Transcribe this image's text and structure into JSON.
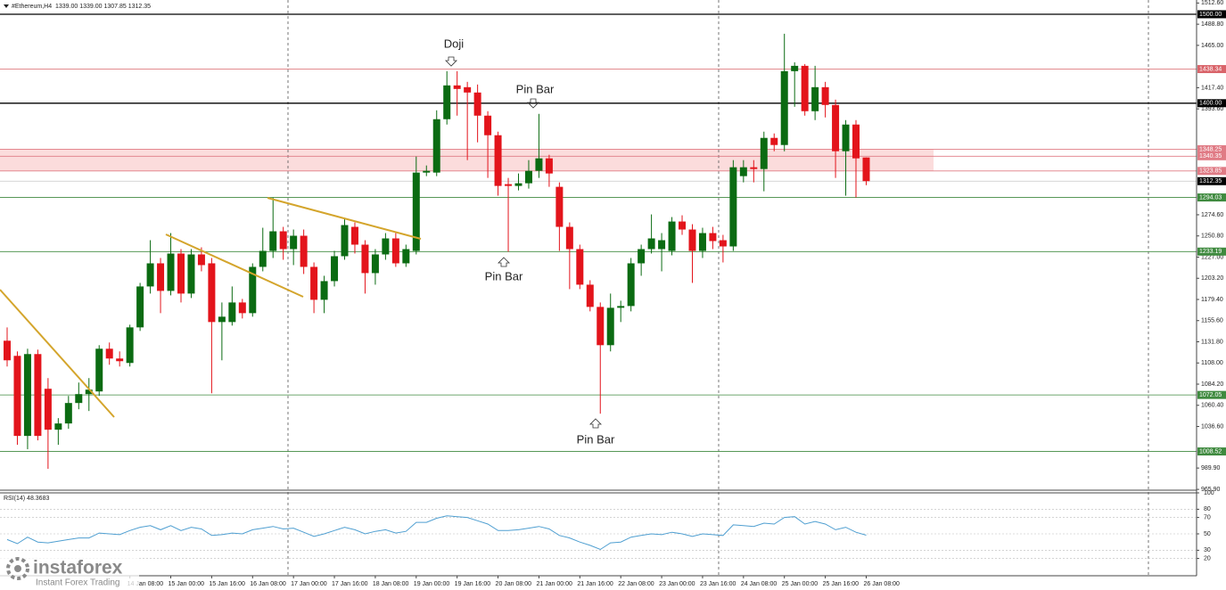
{
  "header": {
    "symbol": "#Ethereum,H4",
    "info": "1339.00 1339.00 1307.85 1312.35"
  },
  "chart_data": [
    {
      "type": "candlestick",
      "categories": [
        null,
        null,
        null,
        null,
        null,
        null,
        null,
        null,
        null,
        null,
        null,
        null,
        "14 Jan 08:00",
        null,
        null,
        null,
        "15 Jan 00:00",
        null,
        null,
        null,
        "15 Jan 16:00",
        null,
        null,
        null,
        "16 Jan 08:00",
        null,
        null,
        null,
        "17 Jan 00:00",
        null,
        null,
        null,
        "17 Jan 16:00",
        null,
        null,
        null,
        "18 Jan 08:00",
        null,
        null,
        null,
        "19 Jan 00:00",
        null,
        null,
        null,
        "19 Jan 16:00",
        null,
        null,
        null,
        "20 Jan 08:00",
        null,
        null,
        null,
        "21 Jan 00:00",
        null,
        null,
        null,
        "21 Jan 16:00",
        null,
        null,
        null,
        "22 Jan 08:00",
        null,
        null,
        null,
        "23 Jan 00:00",
        null,
        null,
        null,
        "23 Jan 16:00",
        null,
        null,
        null,
        "24 Jan 08:00",
        null,
        null,
        null,
        "25 Jan 00:00",
        null,
        null,
        null,
        "25 Jan 16:00",
        null,
        null,
        null,
        "26 Jan 08:00"
      ],
      "open": [
        1133,
        1116,
        1026,
        1118,
        1079,
        1033,
        1040,
        1063,
        1073,
        1076,
        1124,
        1113,
        1108,
        1148,
        1194,
        1220,
        1189,
        1231,
        1186,
        1230,
        1220,
        1154,
        1154,
        1176,
        1164,
        1216,
        1234,
        1256,
        1236,
        1251,
        1216,
        1179,
        1200,
        1228,
        1261,
        1241,
        1209,
        1230,
        1248,
        1220,
        1234,
        1322,
        1322,
        1382,
        1420,
        1418,
        1412,
        1386,
        1364,
        1309,
        1307,
        1310,
        1324,
        1338,
        1306,
        1261,
        1236,
        1196,
        1171,
        1128,
        1170,
        1172,
        1220,
        1236,
        1236,
        1234,
        1267,
        1258,
        1234,
        1254,
        1246,
        1239,
        1318,
        1328,
        1326,
        1361,
        1353,
        1436,
        1442,
        1391,
        1418,
        1398,
        1346,
        1376,
        1339
      ],
      "high": [
        1148,
        1121,
        1124,
        1123,
        1091,
        1046,
        1071,
        1086,
        1091,
        1128,
        1131,
        1121,
        1151,
        1198,
        1246,
        1226,
        1254,
        1236,
        1236,
        1238,
        1226,
        1176,
        1194,
        1180,
        1220,
        1260,
        1294,
        1261,
        1258,
        1258,
        1221,
        1206,
        1234,
        1271,
        1266,
        1246,
        1236,
        1254,
        1254,
        1241,
        1340,
        1330,
        1392,
        1436,
        1436,
        1424,
        1421,
        1391,
        1368,
        1316,
        1321,
        1336,
        1388,
        1342,
        1311,
        1266,
        1241,
        1201,
        1176,
        1186,
        1178,
        1226,
        1241,
        1275,
        1254,
        1272,
        1274,
        1264,
        1260,
        1261,
        1252,
        1336,
        1336,
        1336,
        1368,
        1366,
        1478,
        1446,
        1444,
        1442,
        1424,
        1404,
        1381,
        1381,
        1339
      ],
      "low": [
        1104,
        1016,
        1011,
        1021,
        989,
        1016,
        1034,
        1056,
        1054,
        1071,
        1106,
        1104,
        1104,
        1144,
        1186,
        1164,
        1184,
        1176,
        1181,
        1211,
        1074,
        1111,
        1150,
        1158,
        1160,
        1211,
        1226,
        1224,
        1218,
        1208,
        1164,
        1164,
        1194,
        1224,
        1231,
        1186,
        1196,
        1224,
        1216,
        1216,
        1230,
        1318,
        1318,
        1376,
        1386,
        1336,
        1356,
        1316,
        1296,
        1233,
        1302,
        1304,
        1316,
        1306,
        1234,
        1191,
        1191,
        1166,
        1051,
        1121,
        1154,
        1166,
        1206,
        1231,
        1211,
        1229,
        1252,
        1198,
        1226,
        1236,
        1221,
        1234,
        1311,
        1311,
        1301,
        1346,
        1346,
        1396,
        1386,
        1381,
        1384,
        1316,
        1296,
        1294,
        1307.85
      ],
      "close": [
        1111,
        1026,
        1118,
        1026,
        1033,
        1040,
        1063,
        1073,
        1078,
        1124,
        1113,
        1110,
        1148,
        1194,
        1220,
        1189,
        1231,
        1186,
        1230,
        1218,
        1154,
        1160,
        1176,
        1164,
        1216,
        1234,
        1256,
        1236,
        1251,
        1216,
        1179,
        1200,
        1228,
        1263,
        1241,
        1209,
        1230,
        1248,
        1220,
        1236,
        1322,
        1324,
        1382,
        1420,
        1416,
        1412,
        1386,
        1364,
        1307,
        1307,
        1310,
        1324,
        1338,
        1321,
        1261,
        1236,
        1196,
        1171,
        1128,
        1170,
        1172,
        1220,
        1236,
        1248,
        1246,
        1267,
        1258,
        1234,
        1254,
        1245,
        1239,
        1328,
        1328,
        1326,
        1361,
        1353,
        1436,
        1442,
        1391,
        1418,
        1398,
        1346,
        1376,
        1338,
        1312.35
      ],
      "up_color": "#0b6b12",
      "down_color": "#e3141b",
      "ylim": [
        965,
        1516
      ],
      "yticks": [
        {
          "value": 1512.6,
          "label": "1512.60"
        },
        {
          "value": 1488.8,
          "label": "1488.80"
        },
        {
          "value": 1465,
          "label": "1465.00"
        },
        {
          "value": 1417.4,
          "label": "1417.40"
        },
        {
          "value": 1393.6,
          "label": "1393.60"
        },
        {
          "value": 1274.6,
          "label": "1274.60"
        },
        {
          "value": 1250.8,
          "label": "1250.80"
        },
        {
          "value": 1227,
          "label": "1227.00"
        },
        {
          "value": 1203.2,
          "label": "1203.20"
        },
        {
          "value": 1179.4,
          "label": "1179.40"
        },
        {
          "value": 1155.6,
          "label": "1155.60"
        },
        {
          "value": 1131.8,
          "label": "1131.80"
        },
        {
          "value": 1108,
          "label": "1108.00"
        },
        {
          "value": 1084.2,
          "label": "1084.20"
        },
        {
          "value": 1060.4,
          "label": "1060.40"
        },
        {
          "value": 1036.6,
          "label": "1036.60"
        },
        {
          "value": 989.9,
          "label": "989.90"
        },
        {
          "value": 965.9,
          "label": "965.90"
        }
      ],
      "levels": [
        {
          "value": 1500,
          "label": "1500.00",
          "color": "#000000"
        },
        {
          "value": 1438.34,
          "label": "1438.34",
          "color": "#d9646a"
        },
        {
          "value": 1400,
          "label": "1400.00",
          "color": "#000000"
        },
        {
          "value": 1348.25,
          "label": "1348.25",
          "color": "#e07b85",
          "zone": true
        },
        {
          "value": 1340.35,
          "label": "1340.35",
          "color": "#e07b85"
        },
        {
          "value": 1323.85,
          "label": "1323.85",
          "color": "#e07b85",
          "zone": true
        },
        {
          "value": 1312.35,
          "label": "1312.35",
          "color": "#000000",
          "current": true
        },
        {
          "value": 1294.03,
          "label": "1294.03",
          "color": "#3f8a3f"
        },
        {
          "value": 1233.19,
          "label": "1233.19",
          "color": "#3f8a3f"
        },
        {
          "value": 1072.05,
          "label": "1072.05",
          "color": "#3f8a3f"
        },
        {
          "value": 1008.52,
          "label": "1008.52",
          "color": "#3f8a3f"
        }
      ],
      "zone_color": "#fbdcdc",
      "annotations": [
        "Doji",
        "Pin Bar",
        "Pin Bar",
        "Pin Bar"
      ]
    },
    {
      "type": "line",
      "title": "RSI(14) 48.3683",
      "values": [
        43,
        38,
        46,
        40,
        39,
        41,
        43,
        45,
        45,
        51,
        50,
        49,
        54,
        58,
        60,
        55,
        60,
        54,
        58,
        56,
        48,
        49,
        51,
        50,
        55,
        57,
        59,
        56,
        57,
        52,
        47,
        50,
        54,
        58,
        55,
        50,
        53,
        55,
        51,
        53,
        64,
        64,
        69,
        72,
        71,
        70,
        66,
        62,
        54,
        54,
        55,
        57,
        59,
        56,
        48,
        45,
        40,
        36,
        31,
        39,
        40,
        46,
        48,
        50,
        49,
        52,
        50,
        47,
        50,
        49,
        48,
        61,
        60,
        59,
        63,
        62,
        70,
        71,
        62,
        65,
        62,
        55,
        58,
        52,
        48.3683
      ],
      "color": "#4f9fd1",
      "ylim": [
        0,
        100
      ],
      "yticks": [
        100,
        80,
        70,
        50,
        30,
        20
      ]
    }
  ],
  "branding": {
    "name": "instaforex",
    "tagline": "Instant Forex Trading"
  }
}
